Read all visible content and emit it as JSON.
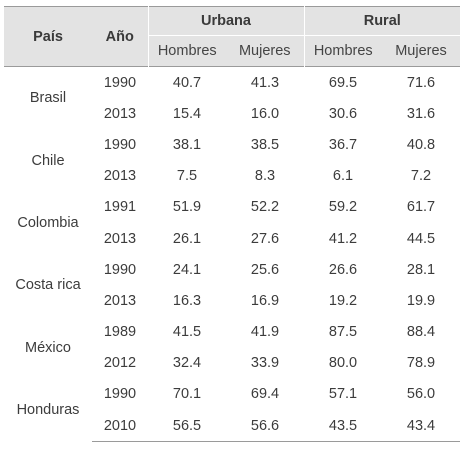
{
  "header": {
    "country": "País",
    "year": "Año",
    "groups": [
      "Urbana",
      "Rural"
    ],
    "sub": [
      "Hombres",
      "Mujeres",
      "Hombres",
      "Mujeres"
    ]
  },
  "countries": [
    {
      "name": "Brasil",
      "rows": [
        {
          "year": "1990",
          "values": [
            "40.7",
            "41.3",
            "69.5",
            "71.6"
          ]
        },
        {
          "year": "2013",
          "values": [
            "15.4",
            "16.0",
            "30.6",
            "31.6"
          ]
        }
      ]
    },
    {
      "name": "Chile",
      "rows": [
        {
          "year": "1990",
          "values": [
            "38.1",
            "38.5",
            "36.7",
            "40.8"
          ]
        },
        {
          "year": "2013",
          "values": [
            "7.5",
            "8.3",
            "6.1",
            "7.2"
          ]
        }
      ]
    },
    {
      "name": "Colombia",
      "rows": [
        {
          "year": "1991",
          "values": [
            "51.9",
            "52.2",
            "59.2",
            "61.7"
          ]
        },
        {
          "year": "2013",
          "values": [
            "26.1",
            "27.6",
            "41.2",
            "44.5"
          ]
        }
      ]
    },
    {
      "name": "Costa rica",
      "rows": [
        {
          "year": "1990",
          "values": [
            "24.1",
            "25.6",
            "26.6",
            "28.1"
          ]
        },
        {
          "year": "2013",
          "values": [
            "16.3",
            "16.9",
            "19.2",
            "19.9"
          ]
        }
      ]
    },
    {
      "name": "México",
      "rows": [
        {
          "year": "1989",
          "values": [
            "41.5",
            "41.9",
            "87.5",
            "88.4"
          ]
        },
        {
          "year": "2012",
          "values": [
            "32.4",
            "33.9",
            "80.0",
            "78.9"
          ]
        }
      ]
    },
    {
      "name": "Honduras",
      "rows": [
        {
          "year": "1990",
          "values": [
            "70.1",
            "69.4",
            "57.1",
            "56.0"
          ]
        },
        {
          "year": "2010",
          "values": [
            "56.5",
            "56.6",
            "43.5",
            "43.4"
          ]
        }
      ]
    }
  ]
}
